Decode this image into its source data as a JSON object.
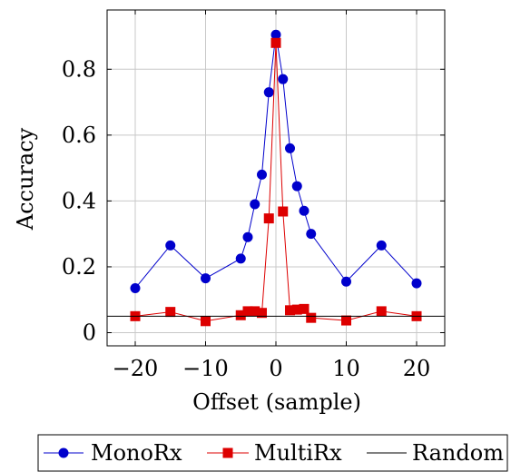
{
  "chart_data": {
    "type": "line",
    "title": "",
    "xlabel": "Offset (sample)",
    "ylabel": "Accuracy",
    "xlim": [
      -24,
      24
    ],
    "ylim": [
      -0.04,
      0.98
    ],
    "xticks": [
      -20,
      -10,
      0,
      10,
      20
    ],
    "xtick_labels": [
      "−20",
      "−10",
      "0",
      "10",
      "20"
    ],
    "yticks": [
      0,
      0.2,
      0.4,
      0.6,
      0.8
    ],
    "ytick_labels": [
      "0",
      "0.2",
      "0.4",
      "0.6",
      "0.8"
    ],
    "grid": true,
    "legend_position": "bottom-outside",
    "series": [
      {
        "name": "MonoRx",
        "color": "#0000cc",
        "marker": "circle",
        "x": [
          -20,
          -15,
          -10,
          -5,
          -4,
          -3,
          -2,
          -1,
          0,
          1,
          2,
          3,
          4,
          5,
          10,
          15,
          20
        ],
        "y": [
          0.135,
          0.265,
          0.165,
          0.225,
          0.29,
          0.39,
          0.48,
          0.73,
          0.905,
          0.77,
          0.56,
          0.445,
          0.37,
          0.3,
          0.155,
          0.265,
          0.15
        ]
      },
      {
        "name": "MultiRx",
        "color": "#dd0000",
        "marker": "square",
        "x": [
          -20,
          -15,
          -10,
          -5,
          -4,
          -3,
          -2,
          -1,
          0,
          1,
          2,
          3,
          4,
          5,
          10,
          15,
          20
        ],
        "y": [
          0.05,
          0.063,
          0.035,
          0.053,
          0.065,
          0.065,
          0.06,
          0.347,
          0.88,
          0.368,
          0.068,
          0.07,
          0.072,
          0.045,
          0.037,
          0.065,
          0.05
        ]
      },
      {
        "name": "Random",
        "color": "#000000",
        "marker": "none",
        "x": [
          -24,
          24
        ],
        "y": [
          0.05,
          0.05
        ]
      }
    ]
  }
}
